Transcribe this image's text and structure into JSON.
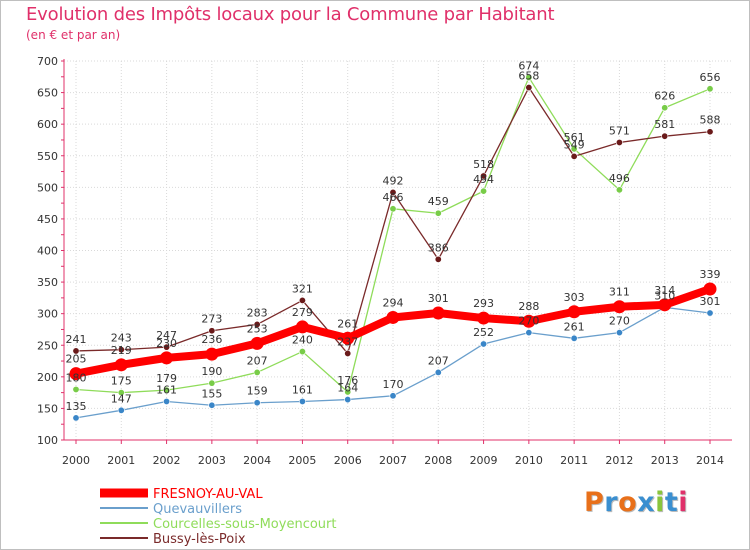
{
  "title": "Evolution des Impôts locaux pour la Commune par Habitant",
  "subtitle": "(en € et par an)",
  "logo": {
    "text": "Proxiti",
    "colors": [
      "#e8701a",
      "#3a8fd0",
      "#e8701a",
      "#3a8fd0",
      "#8ac53d",
      "#3a8fd0",
      "#e0306a"
    ]
  },
  "chart_data": {
    "type": "line",
    "title": "Evolution des Impôts locaux pour la Commune par Habitant",
    "ylabel": "(en € et par an)",
    "xlabel": "",
    "ylim": [
      100,
      700
    ],
    "yticks": [
      100,
      150,
      200,
      250,
      300,
      350,
      400,
      450,
      500,
      550,
      600,
      650,
      700
    ],
    "grid": true,
    "legend_position": "bottom-left",
    "x": [
      "2000",
      "2001",
      "2002",
      "2003",
      "2004",
      "2005",
      "2006",
      "2007",
      "2008",
      "2009",
      "2010",
      "2011",
      "2012",
      "2013",
      "2014"
    ],
    "series": [
      {
        "name": "Quevauvillers",
        "color": "#6a9fcc",
        "marker": "#3a86c8",
        "thick": false,
        "values": [
          135,
          147,
          161,
          155,
          159,
          161,
          164,
          170,
          207,
          252,
          270,
          261,
          270,
          310,
          301
        ],
        "labels": [
          "135",
          "147",
          "161",
          "155",
          "159",
          "161",
          "164",
          "170",
          "207",
          "252",
          "270",
          "261",
          "270",
          "310",
          "301"
        ]
      },
      {
        "name": "Courcelles-sous-Moyencourt",
        "color": "#8fdc5a",
        "marker": "#78cc48",
        "thick": false,
        "values": [
          180,
          175,
          179,
          190,
          207,
          240,
          176,
          466,
          459,
          494,
          674,
          561,
          496,
          626,
          656
        ],
        "labels": [
          "180",
          "175",
          "179",
          "190",
          "207",
          "240",
          "176",
          "466",
          "459",
          "494",
          "674",
          "561",
          "496",
          "626",
          "656"
        ]
      },
      {
        "name": "Bussy-lès-Poix",
        "color": "#7a2a2a",
        "marker": "#6a1a1a",
        "thick": false,
        "values": [
          241,
          243,
          247,
          273,
          283,
          321,
          237,
          492,
          386,
          518,
          658,
          549,
          571,
          581,
          588
        ],
        "labels": [
          "241",
          "243",
          "247",
          "273",
          "283",
          "321",
          "237",
          "492",
          "386",
          "518",
          "658",
          "549",
          "571",
          "581",
          "588"
        ]
      },
      {
        "name": "FRESNOY-AU-VAL",
        "color": "#ff0000",
        "marker": "#ff0000",
        "thick": true,
        "values": [
          205,
          219,
          230,
          236,
          253,
          279,
          261,
          294,
          301,
          293,
          288,
          303,
          311,
          314,
          339
        ],
        "labels": [
          "205",
          "219",
          "230",
          "236",
          "253",
          "279",
          "261",
          "294",
          "301",
          "293",
          "288",
          "303",
          "311",
          "314",
          "339"
        ]
      }
    ],
    "legend_order": [
      "FRESNOY-AU-VAL",
      "Quevauvillers",
      "Courcelles-sous-Moyencourt",
      "Bussy-lès-Poix"
    ]
  }
}
